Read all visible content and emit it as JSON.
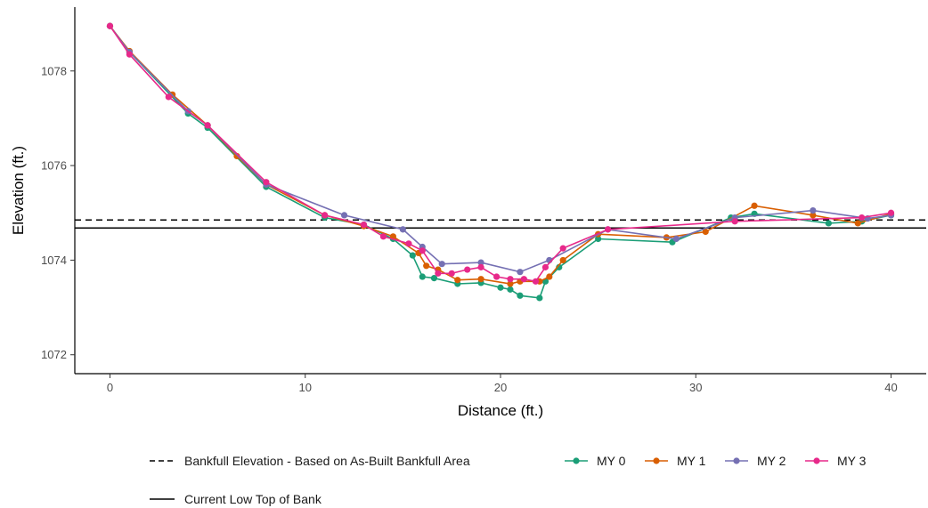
{
  "chart_data": {
    "type": "line",
    "title": "",
    "xlabel": "Distance (ft.)",
    "ylabel": "Elevation (ft.)",
    "xlim": [
      -1.8,
      41.8
    ],
    "ylim": [
      1071.6,
      1079.35
    ],
    "x_ticks": [
      0,
      10,
      20,
      30,
      40
    ],
    "y_ticks": [
      1072,
      1074,
      1076,
      1078
    ],
    "x_tick_labels": [
      "0",
      "10",
      "20",
      "30",
      "40"
    ],
    "y_tick_labels": [
      "1072",
      "1074",
      "1076",
      "1078"
    ],
    "grid": false,
    "legend_position": "bottom",
    "reference_lines": [
      {
        "name": "Bankfull Elevation - Based on As-Built Bankfull Area",
        "style": "dashed",
        "color": "#000000",
        "y": 1074.85
      },
      {
        "name": "Current Low Top of Bank",
        "style": "solid",
        "color": "#000000",
        "y": 1074.68
      }
    ],
    "series": [
      {
        "name": "MY 0",
        "color": "#1b9e77",
        "points": [
          [
            0,
            1078.95
          ],
          [
            1,
            1078.4
          ],
          [
            4,
            1077.1
          ],
          [
            5,
            1076.8
          ],
          [
            8,
            1075.55
          ],
          [
            11,
            1074.9
          ],
          [
            13,
            1074.75
          ],
          [
            14.5,
            1074.45
          ],
          [
            15.5,
            1074.1
          ],
          [
            16,
            1073.65
          ],
          [
            16.6,
            1073.62
          ],
          [
            17.8,
            1073.5
          ],
          [
            19,
            1073.52
          ],
          [
            20,
            1073.42
          ],
          [
            20.5,
            1073.38
          ],
          [
            21,
            1073.25
          ],
          [
            22,
            1073.2
          ],
          [
            22.3,
            1073.55
          ],
          [
            23,
            1073.85
          ],
          [
            25,
            1074.45
          ],
          [
            28.8,
            1074.38
          ],
          [
            31.8,
            1074.9
          ],
          [
            33,
            1074.98
          ],
          [
            36.8,
            1074.78
          ],
          [
            38.5,
            1074.82
          ],
          [
            40,
            1074.95
          ]
        ]
      },
      {
        "name": "MY 1",
        "color": "#d95f02",
        "points": [
          [
            0,
            1078.95
          ],
          [
            1,
            1078.42
          ],
          [
            3.2,
            1077.5
          ],
          [
            5,
            1076.85
          ],
          [
            6.5,
            1076.2
          ],
          [
            8,
            1075.6
          ],
          [
            11,
            1074.95
          ],
          [
            13,
            1074.72
          ],
          [
            14.5,
            1074.5
          ],
          [
            15.8,
            1074.15
          ],
          [
            16.2,
            1073.88
          ],
          [
            16.8,
            1073.8
          ],
          [
            17.8,
            1073.58
          ],
          [
            19,
            1073.6
          ],
          [
            20.5,
            1073.5
          ],
          [
            21,
            1073.55
          ],
          [
            22,
            1073.55
          ],
          [
            22.5,
            1073.65
          ],
          [
            23.2,
            1074.0
          ],
          [
            25,
            1074.55
          ],
          [
            28.5,
            1074.48
          ],
          [
            30.5,
            1074.6
          ],
          [
            33,
            1075.15
          ],
          [
            36,
            1074.95
          ],
          [
            38.3,
            1074.78
          ],
          [
            40,
            1074.98
          ]
        ]
      },
      {
        "name": "MY 2",
        "color": "#7570b3",
        "points": [
          [
            0,
            1078.95
          ],
          [
            1,
            1078.4
          ],
          [
            4,
            1077.15
          ],
          [
            5,
            1076.85
          ],
          [
            8,
            1075.6
          ],
          [
            12,
            1074.95
          ],
          [
            15,
            1074.65
          ],
          [
            16,
            1074.28
          ],
          [
            17,
            1073.92
          ],
          [
            19,
            1073.95
          ],
          [
            21,
            1073.75
          ],
          [
            22.5,
            1074.0
          ],
          [
            25.5,
            1074.65
          ],
          [
            29,
            1074.45
          ],
          [
            32,
            1074.9
          ],
          [
            36,
            1075.05
          ],
          [
            38.8,
            1074.88
          ],
          [
            40,
            1074.95
          ]
        ]
      },
      {
        "name": "MY 3",
        "color": "#e7298a",
        "points": [
          [
            0,
            1078.95
          ],
          [
            1,
            1078.35
          ],
          [
            3,
            1077.45
          ],
          [
            5,
            1076.85
          ],
          [
            8,
            1075.65
          ],
          [
            11,
            1074.95
          ],
          [
            13,
            1074.75
          ],
          [
            14,
            1074.5
          ],
          [
            15.3,
            1074.35
          ],
          [
            16,
            1074.2
          ],
          [
            16.8,
            1073.72
          ],
          [
            17.5,
            1073.72
          ],
          [
            18.3,
            1073.8
          ],
          [
            19,
            1073.85
          ],
          [
            19.8,
            1073.65
          ],
          [
            20.5,
            1073.6
          ],
          [
            21.2,
            1073.6
          ],
          [
            21.8,
            1073.55
          ],
          [
            22.3,
            1073.85
          ],
          [
            23.2,
            1074.25
          ],
          [
            25.5,
            1074.65
          ],
          [
            32,
            1074.82
          ],
          [
            38.5,
            1074.9
          ],
          [
            40,
            1075.0
          ]
        ]
      }
    ]
  }
}
